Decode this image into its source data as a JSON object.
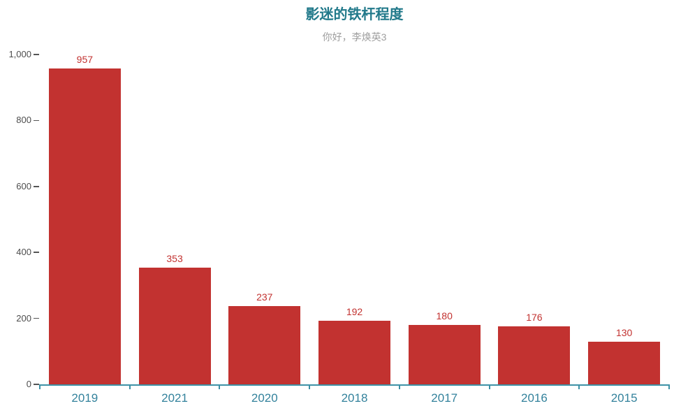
{
  "chart_data": {
    "type": "bar",
    "title": "影迷的铁杆程度",
    "subtitle": "你好，李焕英3",
    "categories": [
      "2019",
      "2021",
      "2020",
      "2018",
      "2017",
      "2016",
      "2015"
    ],
    "values": [
      957,
      353,
      237,
      192,
      180,
      176,
      130
    ],
    "xlabel": "",
    "ylabel": "",
    "ylim": [
      0,
      1000
    ],
    "yticks": [
      0,
      200,
      400,
      600,
      800,
      1000
    ],
    "ytick_labels": [
      "0",
      "200",
      "400",
      "600",
      "800",
      "1,000"
    ],
    "grid": false,
    "legend": false,
    "value_labels_position": "top",
    "colors": {
      "bar": "#c23230",
      "value_label": "#c23230",
      "title": "#21798a",
      "subtitle": "#9e9e9e",
      "x_axis_line": "#3e92a6",
      "x_tick_label": "#33829c",
      "y_tick_label": "#4d4d4d",
      "y_tick_dash": "#555555",
      "background": "#ffffff"
    }
  }
}
